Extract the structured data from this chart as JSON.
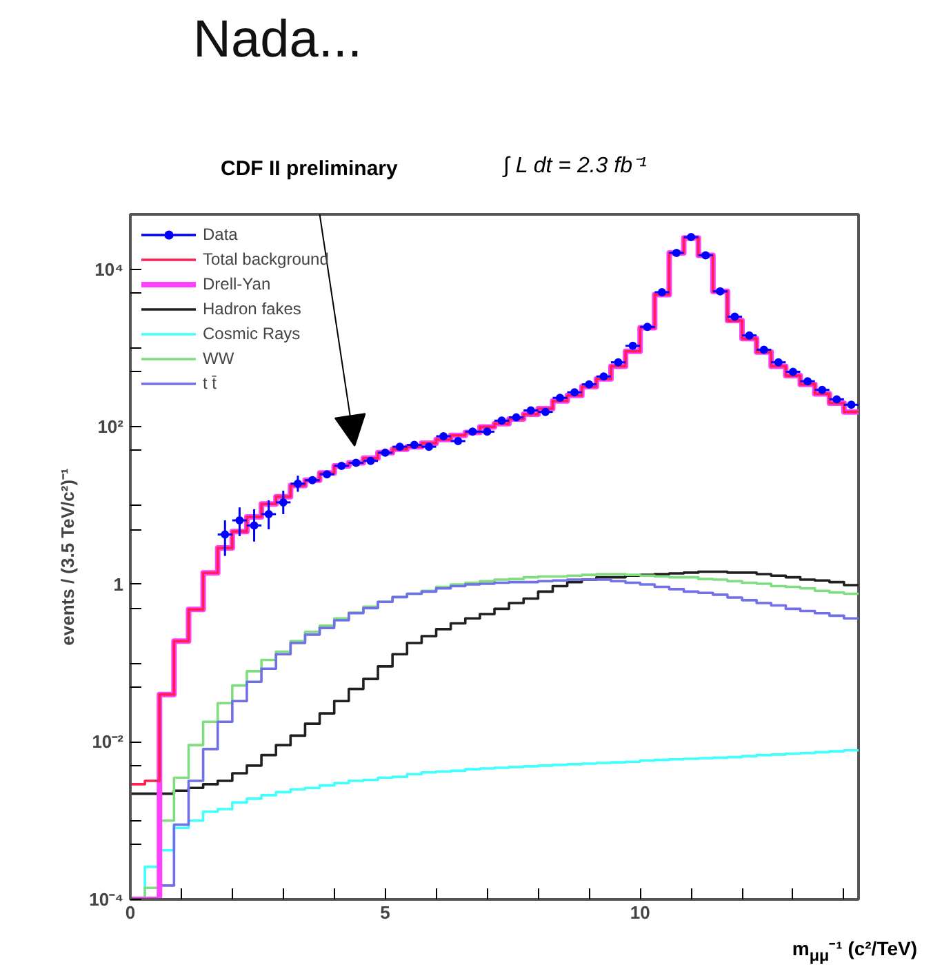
{
  "chart_data": {
    "type": "histogram",
    "title": "CDF II preliminary",
    "xlabel": "m$_{μμ}$⁻¹ (c²/TeV)",
    "ylabel": "events / (3.5 TeV/c²)⁻¹",
    "annotations": [
      "∫ L dt = 2.3 fb⁻¹",
      "Nada..."
    ],
    "bins": [
      0,
      0.2857,
      0.5714,
      0.8571,
      1.1429,
      1.4286,
      1.7143,
      2,
      2.2857,
      2.5714,
      2.8571,
      3.1429,
      3.4286,
      3.7143,
      4,
      4.2857,
      4.5714,
      4.8571,
      5.1429,
      5.4286,
      5.7143,
      6,
      6.2857,
      6.5714,
      6.8571,
      7.1429,
      7.4286,
      7.7143,
      8,
      8.2857,
      8.5714,
      8.8571,
      9.1429,
      9.4286,
      9.7143,
      10,
      10.2857,
      10.5714,
      10.8571,
      11.1429,
      11.4286,
      11.7143,
      12,
      12.2857,
      12.5714,
      12.8571,
      13.1429,
      13.4286,
      13.7143,
      14,
      14.2857
    ],
    "series": [
      {
        "name": "Data",
        "type": "scatter",
        "color": "#0000ff",
        "marker": "circle",
        "x": [
          1.857,
          2.143,
          2.429,
          2.714,
          3.0,
          3.286,
          3.571,
          3.857,
          4.143,
          4.429,
          4.714,
          5.0,
          5.286,
          5.571,
          5.857,
          6.143,
          6.429,
          6.714,
          7.0,
          7.286,
          7.571,
          7.857,
          8.143,
          8.429,
          8.714,
          9.0,
          9.286,
          9.571,
          9.857,
          10.143,
          10.429,
          10.714,
          11.0,
          11.286,
          11.571,
          11.857,
          12.143,
          12.429,
          12.714,
          13.0,
          13.286,
          13.571,
          13.857,
          14.143
        ],
        "values": [
          4.3,
          6.5,
          5.6,
          7.8,
          11,
          19,
          21,
          25,
          32,
          35,
          37,
          47,
          56,
          59,
          56,
          76,
          66,
          87,
          87,
          120,
          132,
          162,
          155,
          234,
          275,
          347,
          437,
          661,
          1070,
          1860,
          5130,
          16200,
          25700,
          15100,
          5250,
          2510,
          1450,
          955,
          661,
          501,
          380,
          295,
          224,
          191
        ],
        "errors": [
          [
            2.3,
            6.5
          ],
          [
            4.1,
            9.5
          ],
          [
            3.5,
            9
          ],
          [
            5,
            11.7
          ],
          [
            7.8,
            15.5
          ],
          [
            15,
            24
          ],
          null,
          null,
          null,
          null,
          null,
          null,
          null,
          null,
          null,
          null,
          null,
          null,
          null,
          null,
          null,
          null,
          null,
          null,
          null,
          null,
          null,
          null,
          null,
          null,
          null,
          null,
          null,
          null,
          null,
          null,
          null,
          null,
          null,
          null,
          null,
          null,
          null,
          null
        ],
        "xerrors": [
          0.1429,
          0.1429,
          0.1429,
          0.1429,
          0.1429,
          0.1429,
          0.1429,
          0.1429,
          0.1429,
          0.1429,
          0.1429,
          0.1429,
          0.1429,
          0.1429,
          0.1429,
          0.1429,
          0.1429,
          0.1429,
          0.1429,
          0.1429,
          0.1429,
          0.1429,
          0.1429,
          0.1429,
          0.1429,
          0.1429,
          0.1429,
          0.1429,
          0.1429,
          0.1429,
          0.1429,
          0.1429,
          0.1429,
          0.1429,
          0.1429,
          0.1429,
          0.1429,
          0.1429,
          0.1429,
          0.1429,
          0.1429,
          0.1429,
          0.1429,
          0.1429
        ]
      },
      {
        "name": "Total background",
        "color": "#ff2050",
        "values": [
          0.0029,
          0.0032,
          0.04,
          0.19,
          0.48,
          1.4,
          2.9,
          4.7,
          7.2,
          10.5,
          13,
          18,
          21,
          26,
          32,
          35,
          40,
          47,
          52,
          56,
          62,
          69,
          78,
          85,
          100,
          110,
          126,
          145,
          170,
          214,
          251,
          324,
          407,
          589,
          912,
          1820,
          4790,
          16200,
          25100,
          15100,
          5250,
          2240,
          1320,
          891,
          589,
          447,
          347,
          263,
          200,
          155
        ]
      },
      {
        "name": "Drell-Yan",
        "color": "#ff40ff",
        "values": [
          null,
          null,
          0.04,
          0.19,
          0.48,
          1.4,
          2.9,
          4.7,
          7.2,
          10.5,
          13,
          18,
          21,
          26,
          32,
          35,
          40,
          47,
          52,
          56,
          62,
          69,
          78,
          85,
          100,
          110,
          126,
          145,
          170,
          214,
          251,
          324,
          407,
          589,
          912,
          1820,
          4790,
          16200,
          25100,
          15100,
          5250,
          2240,
          1320,
          891,
          589,
          447,
          347,
          263,
          200,
          155
        ]
      },
      {
        "name": "Hadron fakes",
        "color": "#202020",
        "values": [
          0.0022,
          0.0022,
          0.0022,
          0.0024,
          0.0026,
          0.0029,
          0.0032,
          0.004,
          0.005,
          0.0068,
          0.0091,
          0.012,
          0.017,
          0.023,
          0.033,
          0.047,
          0.063,
          0.091,
          0.13,
          0.18,
          0.22,
          0.27,
          0.32,
          0.37,
          0.42,
          0.49,
          0.58,
          0.66,
          0.81,
          0.95,
          1.07,
          1.15,
          1.23,
          1.23,
          1.29,
          1.32,
          1.35,
          1.38,
          1.41,
          1.45,
          1.45,
          1.41,
          1.41,
          1.35,
          1.29,
          1.23,
          1.15,
          1.12,
          1.07,
          0.98
        ]
      },
      {
        "name": "Cosmic Rays",
        "color": "#40ffff",
        "values": [
          null,
          0.00026,
          0.00042,
          0.00081,
          0.001,
          0.0013,
          0.0014,
          0.0017,
          0.0019,
          0.0021,
          0.0023,
          0.0025,
          0.0026,
          0.0028,
          0.003,
          0.0032,
          0.0033,
          0.0035,
          0.0036,
          0.0039,
          0.0041,
          0.0042,
          0.0043,
          0.0045,
          0.0046,
          0.0047,
          0.0048,
          0.0049,
          0.005,
          0.0051,
          0.0052,
          0.0053,
          0.0054,
          0.0055,
          0.0056,
          0.0058,
          0.0059,
          0.006,
          0.0061,
          0.0062,
          0.0063,
          0.0064,
          0.0066,
          0.0068,
          0.0069,
          0.0071,
          0.0072,
          0.0074,
          0.0076,
          0.0078
        ]
      },
      {
        "name": "WW",
        "color": "#80dd80",
        "values": [
          null,
          0.00014,
          0.001,
          0.0035,
          0.0091,
          0.018,
          0.031,
          0.052,
          0.079,
          0.11,
          0.14,
          0.19,
          0.25,
          0.3,
          0.37,
          0.44,
          0.52,
          0.6,
          0.69,
          0.76,
          0.83,
          0.93,
          1.0,
          1.05,
          1.1,
          1.15,
          1.17,
          1.23,
          1.26,
          1.26,
          1.29,
          1.32,
          1.35,
          1.35,
          1.32,
          1.29,
          1.26,
          1.23,
          1.23,
          1.17,
          1.15,
          1.1,
          1.05,
          1.02,
          0.95,
          0.93,
          0.89,
          0.83,
          0.79,
          0.76
        ]
      },
      {
        "name": "t t̄",
        "color": "#7070e8",
        "values": [
          null,
          null,
          0.00015,
          0.00089,
          0.0032,
          0.0081,
          0.018,
          0.033,
          0.058,
          0.085,
          0.13,
          0.18,
          0.23,
          0.28,
          0.35,
          0.43,
          0.5,
          0.6,
          0.69,
          0.76,
          0.81,
          0.89,
          0.95,
          1.0,
          1.02,
          1.05,
          1.07,
          1.07,
          1.1,
          1.12,
          1.15,
          1.15,
          1.15,
          1.1,
          1.05,
          1.0,
          0.93,
          0.87,
          0.81,
          0.78,
          0.74,
          0.68,
          0.63,
          0.58,
          0.54,
          0.49,
          0.46,
          0.43,
          0.4,
          0.37
        ]
      }
    ],
    "xlim": [
      0,
      14.2857
    ],
    "ylim": [
      0.0001,
      50000
    ],
    "xticks": [
      0,
      {
        "value": 1,
        "label": null
      },
      {
        "value": 2,
        "label": null
      },
      {
        "value": 3,
        "label": null
      },
      {
        "value": 4,
        "label": null
      },
      5,
      {
        "value": 6,
        "label": null
      },
      {
        "value": 7,
        "label": null
      },
      {
        "value": 8,
        "label": null
      },
      {
        "value": 9,
        "label": null
      },
      10,
      {
        "value": 11,
        "label": null
      },
      {
        "value": 12,
        "label": null
      },
      {
        "value": 13,
        "label": null
      },
      {
        "value": 14,
        "label": null
      }
    ],
    "yticks": [
      {
        "value": 0.0001,
        "label": "10⁻⁴"
      },
      {
        "value": 0.0005,
        "label": null
      },
      {
        "value": 0.001,
        "label": null
      },
      {
        "value": 0.005,
        "label": null
      },
      {
        "value": 0.01,
        "label": "10⁻²"
      },
      {
        "value": 0.05,
        "label": null
      },
      {
        "value": 0.1,
        "label": null
      },
      {
        "value": 0.5,
        "label": null
      },
      1,
      {
        "value": 5,
        "label": null
      },
      {
        "value": 10,
        "label": null
      },
      {
        "value": 50,
        "label": null
      },
      {
        "value": 100,
        "label": "10²"
      },
      {
        "value": 500,
        "label": null
      },
      {
        "value": 1000,
        "label": null
      },
      {
        "value": 5000,
        "label": null
      },
      {
        "value": 10000,
        "label": "10⁴"
      }
    ],
    "log": "y",
    "grid": false,
    "legend": "top left"
  }
}
